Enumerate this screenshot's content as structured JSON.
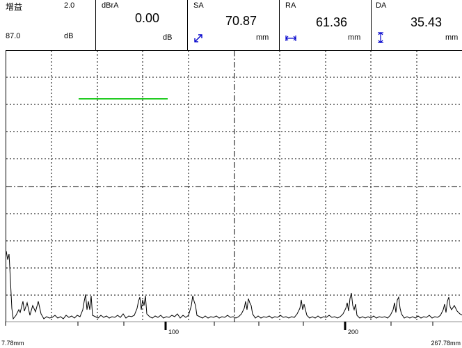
{
  "header": {
    "gain": {
      "label": "增益",
      "step": "2.0",
      "value": "87.0",
      "unit": "dB"
    },
    "dbra": {
      "label": "dBrA",
      "value": "0.00",
      "unit": "dB"
    },
    "sa": {
      "label": "SA",
      "value": "70.87",
      "unit": "mm",
      "icon": "diagonal-arrow-icon"
    },
    "ra": {
      "label": "RA",
      "value": "61.36",
      "unit": "mm",
      "icon": "horizontal-arrow-icon"
    },
    "da": {
      "label": "DA",
      "value": "35.43",
      "unit": "mm",
      "icon": "vertical-arrow-icon"
    }
  },
  "scale": {
    "start": "7.78mm",
    "end": "267.78mm",
    "tick_100": "100",
    "tick_200": "200"
  },
  "colors": {
    "gate": "#22cc22",
    "icon": "#0000cc",
    "grid": "#000000"
  }
}
